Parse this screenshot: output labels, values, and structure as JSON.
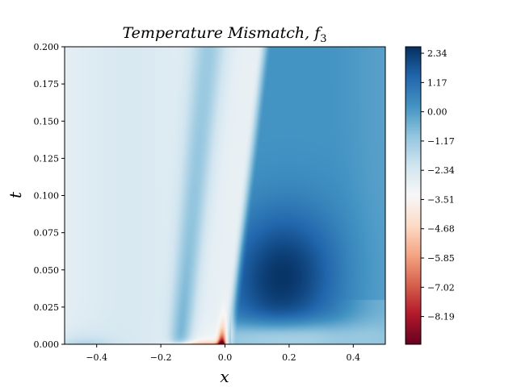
{
  "chart_data": {
    "type": "heatmap",
    "title_main": "Temperature Mismatch, ",
    "title_var": "f",
    "title_sub": "3",
    "xlabel": "x",
    "ylabel": "t",
    "xlim": [
      -0.5,
      0.5
    ],
    "ylim": [
      0.0,
      0.2
    ],
    "x_ticks": [
      {
        "value": -0.4,
        "label": "−0.4"
      },
      {
        "value": -0.2,
        "label": "−0.2"
      },
      {
        "value": 0.0,
        "label": "0.0"
      },
      {
        "value": 0.2,
        "label": "0.2"
      },
      {
        "value": 0.4,
        "label": "0.4"
      }
    ],
    "y_ticks": [
      {
        "value": 0.0,
        "label": "0.000"
      },
      {
        "value": 0.025,
        "label": "0.025"
      },
      {
        "value": 0.05,
        "label": "0.050"
      },
      {
        "value": 0.075,
        "label": "0.075"
      },
      {
        "value": 0.1,
        "label": "0.100"
      },
      {
        "value": 0.125,
        "label": "0.125"
      },
      {
        "value": 0.15,
        "label": "0.150"
      },
      {
        "value": 0.175,
        "label": "0.175"
      },
      {
        "value": 0.2,
        "label": "0.200"
      }
    ],
    "colormap": "RdBu",
    "colorbar": {
      "vmin": -9.3,
      "vmax": 2.6,
      "ticks": [
        {
          "value": 2.34,
          "label": "2.34"
        },
        {
          "value": 1.17,
          "label": "1.17"
        },
        {
          "value": 0.0,
          "label": "0.00"
        },
        {
          "value": -1.17,
          "label": "−1.17"
        },
        {
          "value": -2.34,
          "label": "−2.34"
        },
        {
          "value": -3.51,
          "label": "−3.51"
        },
        {
          "value": -4.68,
          "label": "−4.68"
        },
        {
          "value": -5.85,
          "label": "−5.85"
        },
        {
          "value": -7.02,
          "label": "−7.02"
        },
        {
          "value": -8.19,
          "label": "−8.19"
        }
      ]
    },
    "colors": [
      "#67001f",
      "#b2182b",
      "#d6604d",
      "#f4a582",
      "#fddbc7",
      "#f7f7f7",
      "#d1e5f0",
      "#92c5de",
      "#4393c3",
      "#2166ac",
      "#053061"
    ]
  }
}
